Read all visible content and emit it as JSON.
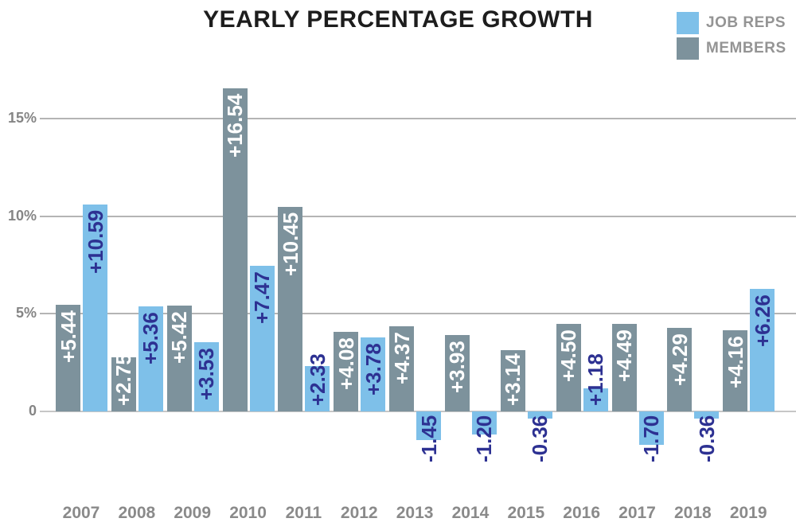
{
  "title": "YEARLY PERCENTAGE GROWTH",
  "legend": [
    {
      "label": "JOB REPS",
      "color": "#7EC0E9"
    },
    {
      "label": "MEMBERS",
      "color": "#7D929C"
    }
  ],
  "chart_data": {
    "type": "bar",
    "title": "YEARLY PERCENTAGE GROWTH",
    "categories": [
      "2007",
      "2008",
      "2009",
      "2010",
      "2011",
      "2012",
      "2013",
      "2014",
      "2015",
      "2016",
      "2017",
      "2018",
      "2019"
    ],
    "series": [
      {
        "name": "MEMBERS",
        "color": "#7D929C",
        "label_color": "#FFFFFF",
        "values": [
          5.44,
          2.75,
          5.42,
          16.54,
          10.45,
          4.08,
          4.37,
          3.93,
          3.14,
          4.5,
          4.49,
          4.29,
          4.16
        ],
        "labels": [
          "+5.44",
          "+2.75",
          "+5.42",
          "+16.54",
          "+10.45",
          "+4.08",
          "+4.37",
          "+3.93",
          "+3.14",
          "+4.50",
          "+4.49",
          "+4.29",
          "+4.16"
        ]
      },
      {
        "name": "JOB REPS",
        "color": "#7EC0E9",
        "label_color": "#2D3192",
        "values": [
          10.59,
          5.36,
          3.53,
          7.47,
          2.33,
          3.78,
          -1.45,
          -1.2,
          -0.36,
          1.18,
          -1.7,
          -0.36,
          6.26
        ],
        "labels": [
          "+10.59",
          "+5.36",
          "+3.53",
          "+7.47",
          "+2.33",
          "+3.78",
          "-1.45",
          "-1.20",
          "-0.36",
          "+1.18",
          "-1.70",
          "-0.36",
          "+6.26"
        ]
      }
    ],
    "y_ticks": [
      {
        "label": "0",
        "value": 0
      },
      {
        "label": "5%",
        "value": 5
      },
      {
        "label": "10%",
        "value": 10
      },
      {
        "label": "15%",
        "value": 15
      }
    ],
    "ylim": [
      -2.5,
      17
    ],
    "grid": true,
    "legend_position": "top-right",
    "colors": {
      "grid": "#B4B4B4",
      "zero_line": "#C6C6C6",
      "tick_text": "#858585",
      "year_text": "#8A8A8A",
      "title_text": "#1D1D1D",
      "legend_text": "#949494",
      "background": "#FFFFFF"
    }
  }
}
